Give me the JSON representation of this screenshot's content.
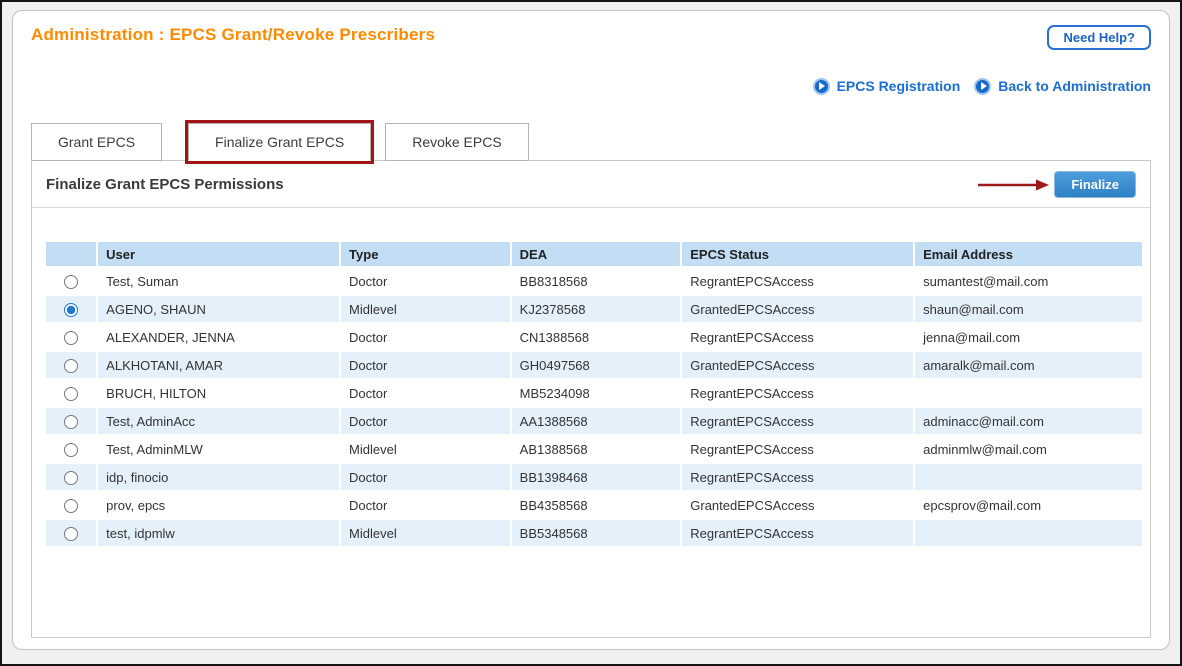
{
  "header": {
    "title": "Administration : EPCS Grant/Revoke Prescribers",
    "need_help_label": "Need Help?",
    "links": [
      {
        "label": "EPCS Registration"
      },
      {
        "label": "Back to Administration"
      }
    ]
  },
  "tabs": [
    {
      "label": "Grant EPCS",
      "active": false,
      "annotated": false
    },
    {
      "label": "Finalize Grant EPCS",
      "active": true,
      "annotated": true
    },
    {
      "label": "Revoke EPCS",
      "active": false,
      "annotated": false
    }
  ],
  "panel": {
    "heading": "Finalize Grant EPCS Permissions",
    "finalize_button_label": "Finalize"
  },
  "table": {
    "columns": [
      "",
      "User",
      "Type",
      "DEA",
      "EPCS Status",
      "Email Address"
    ],
    "rows": [
      {
        "user": "Test, Suman",
        "type": "Doctor",
        "dea": "BB8318568",
        "status": "RegrantEPCSAccess",
        "email": "sumantest@mail.com",
        "selected": false
      },
      {
        "user": "AGENO, SHAUN",
        "type": "Midlevel",
        "dea": "KJ2378568",
        "status": "GrantedEPCSAccess",
        "email": "shaun@mail.com",
        "selected": true
      },
      {
        "user": "ALEXANDER, JENNA",
        "type": "Doctor",
        "dea": "CN1388568",
        "status": "RegrantEPCSAccess",
        "email": "jenna@mail.com",
        "selected": false
      },
      {
        "user": "ALKHOTANI, AMAR",
        "type": "Doctor",
        "dea": "GH0497568",
        "status": "GrantedEPCSAccess",
        "email": "amaralk@mail.com",
        "selected": false
      },
      {
        "user": "BRUCH, HILTON",
        "type": "Doctor",
        "dea": "MB5234098",
        "status": "RegrantEPCSAccess",
        "email": "",
        "selected": false
      },
      {
        "user": "Test, AdminAcc",
        "type": "Doctor",
        "dea": "AA1388568",
        "status": "RegrantEPCSAccess",
        "email": "adminacc@mail.com",
        "selected": false
      },
      {
        "user": "Test, AdminMLW",
        "type": "Midlevel",
        "dea": "AB1388568",
        "status": "RegrantEPCSAccess",
        "email": "adminmlw@mail.com",
        "selected": false
      },
      {
        "user": "idp, finocio",
        "type": "Doctor",
        "dea": "BB1398468",
        "status": "RegrantEPCSAccess",
        "email": "",
        "selected": false
      },
      {
        "user": "prov, epcs",
        "type": "Doctor",
        "dea": "BB4358568",
        "status": "GrantedEPCSAccess",
        "email": "epcsprov@mail.com",
        "selected": false
      },
      {
        "user": "test, idpmlw",
        "type": "Midlevel",
        "dea": "BB5348568",
        "status": "RegrantEPCSAccess",
        "email": "",
        "selected": false
      }
    ]
  },
  "colors": {
    "accent_orange": "#ff8a00",
    "link_blue": "#1a6fd4",
    "button_blue": "#3587ca",
    "annotation_red": "#a31515",
    "table_header_bg": "#c3ddf4",
    "table_alt_row_bg": "#e4f1fb",
    "radio_selected_blue": "#1d79d4"
  }
}
